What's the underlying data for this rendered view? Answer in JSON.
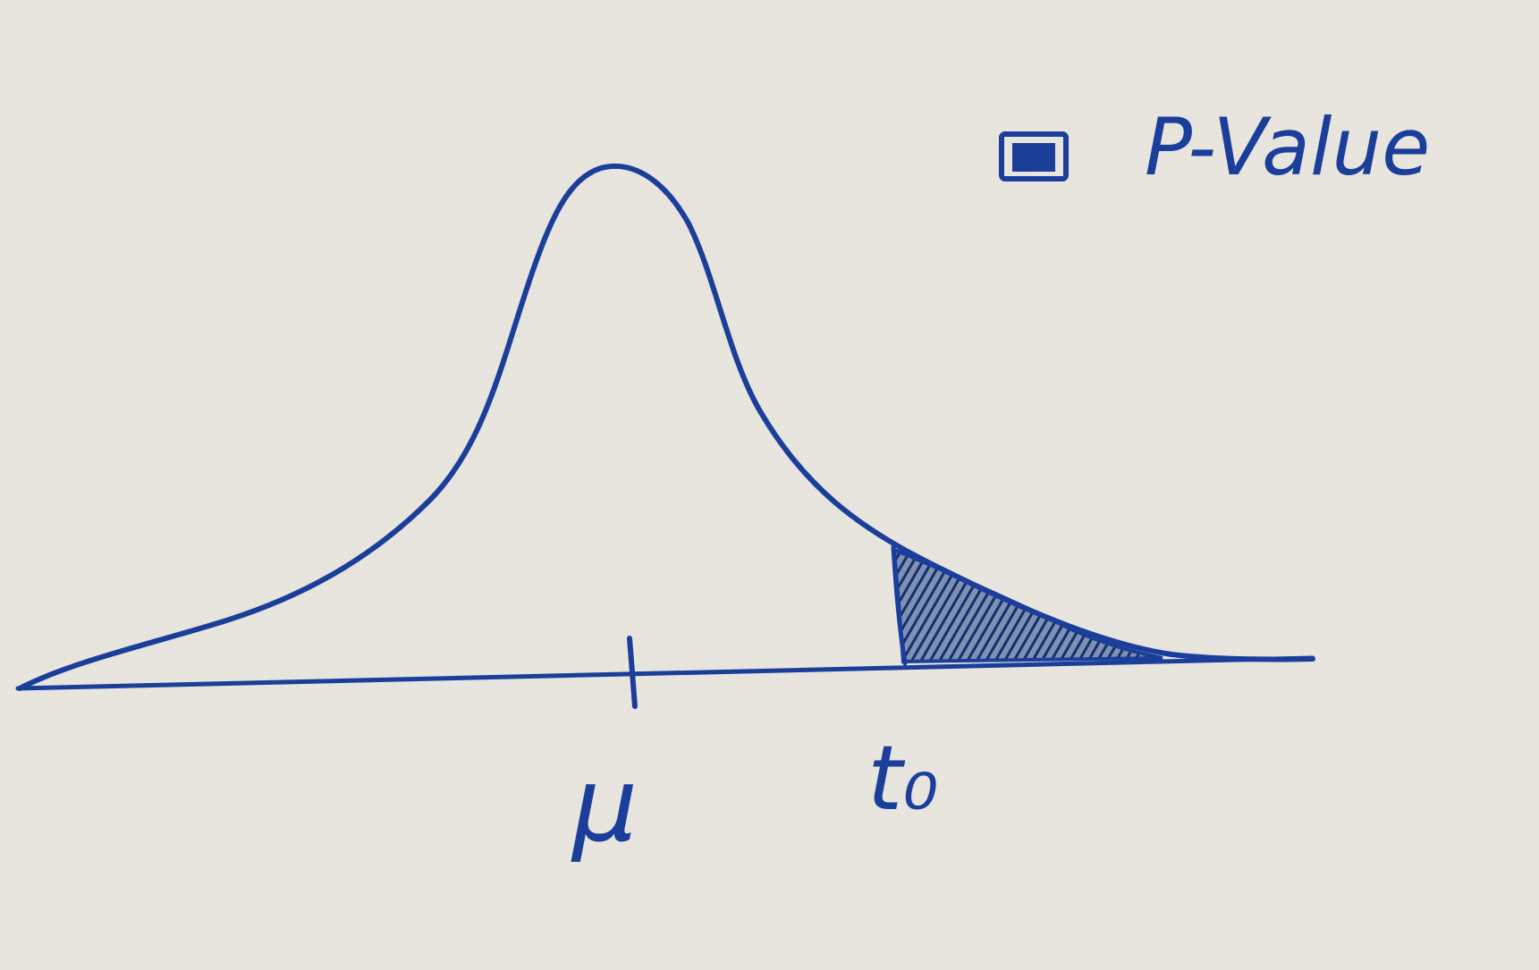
{
  "colors": {
    "paper": "#e9e5df",
    "ink": "#1a3e9a"
  },
  "labels": {
    "mean": "μ",
    "test_statistic": "t₀"
  },
  "legend": {
    "swatch_icon": "filled-square-icon",
    "text": "P-Value"
  }
}
